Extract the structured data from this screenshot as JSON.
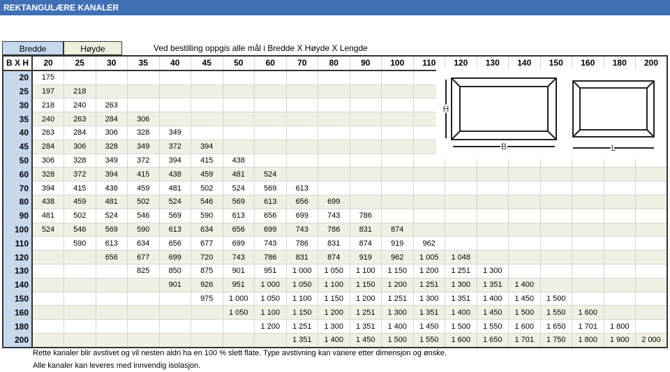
{
  "header": {
    "title": "REKTANGULÆRE KANALER"
  },
  "table": {
    "bredde_label": "Bredde",
    "hoyde_label": "Høyde",
    "note": "Ved bestilling oppgis alle mål i Bredde X Høyde X Lengde",
    "corner": "B X H",
    "columns": [
      "20",
      "25",
      "30",
      "35",
      "40",
      "45",
      "50",
      "60",
      "70",
      "80",
      "90",
      "100",
      "110",
      "120",
      "130",
      "140",
      "150",
      "160",
      "180",
      "200"
    ],
    "rows": [
      {
        "label": "20",
        "cells": [
          "175",
          null,
          null,
          null,
          null,
          null,
          null,
          null,
          null,
          null,
          null,
          null,
          null,
          null,
          null,
          null,
          null,
          null,
          null,
          null
        ]
      },
      {
        "label": "25",
        "cells": [
          "197",
          "218",
          null,
          null,
          null,
          null,
          null,
          null,
          null,
          null,
          null,
          null,
          null,
          null,
          null,
          null,
          null,
          null,
          null,
          null
        ]
      },
      {
        "label": "30",
        "cells": [
          "218",
          "240",
          "263",
          null,
          null,
          null,
          null,
          null,
          null,
          null,
          null,
          null,
          null,
          null,
          null,
          null,
          null,
          null,
          null,
          null
        ]
      },
      {
        "label": "35",
        "cells": [
          "240",
          "263",
          "284",
          "306",
          null,
          null,
          null,
          null,
          null,
          null,
          null,
          null,
          null,
          null,
          null,
          null,
          null,
          null,
          null,
          null
        ]
      },
      {
        "label": "40",
        "cells": [
          "263",
          "284",
          "306",
          "328",
          "349",
          null,
          null,
          null,
          null,
          null,
          null,
          null,
          null,
          null,
          null,
          null,
          null,
          null,
          null,
          null
        ]
      },
      {
        "label": "45",
        "cells": [
          "284",
          "306",
          "328",
          "349",
          "372",
          "394",
          null,
          null,
          null,
          null,
          null,
          null,
          null,
          null,
          null,
          null,
          null,
          null,
          null,
          null
        ]
      },
      {
        "label": "50",
        "cells": [
          "306",
          "328",
          "349",
          "372",
          "394",
          "415",
          "438",
          null,
          null,
          null,
          null,
          null,
          null,
          null,
          null,
          null,
          null,
          null,
          null,
          null
        ]
      },
      {
        "label": "60",
        "cells": [
          "328",
          "372",
          "394",
          "415",
          "438",
          "459",
          "481",
          "524",
          null,
          null,
          null,
          null,
          null,
          null,
          null,
          null,
          null,
          null,
          null,
          null
        ]
      },
      {
        "label": "70",
        "cells": [
          "394",
          "415",
          "438",
          "459",
          "481",
          "502",
          "524",
          "569",
          "613",
          null,
          null,
          null,
          null,
          null,
          null,
          null,
          null,
          null,
          null,
          null
        ]
      },
      {
        "label": "80",
        "cells": [
          "438",
          "459",
          "481",
          "502",
          "524",
          "546",
          "569",
          "613",
          "656",
          "699",
          null,
          null,
          null,
          null,
          null,
          null,
          null,
          null,
          null,
          null
        ]
      },
      {
        "label": "90",
        "cells": [
          "481",
          "502",
          "524",
          "546",
          "569",
          "590",
          "613",
          "656",
          "699",
          "743",
          "786",
          null,
          null,
          null,
          null,
          null,
          null,
          null,
          null,
          null
        ]
      },
      {
        "label": "100",
        "cells": [
          "524",
          "546",
          "569",
          "590",
          "613",
          "634",
          "656",
          "699",
          "743",
          "786",
          "831",
          "874",
          null,
          null,
          null,
          null,
          null,
          null,
          null,
          null
        ]
      },
      {
        "label": "110",
        "cells": [
          null,
          "590",
          "613",
          "634",
          "656",
          "677",
          "699",
          "743",
          "786",
          "831",
          "874",
          "919",
          "962",
          null,
          null,
          null,
          null,
          null,
          null,
          null
        ]
      },
      {
        "label": "120",
        "cells": [
          null,
          null,
          "656",
          "677",
          "699",
          "720",
          "743",
          "786",
          "831",
          "874",
          "919",
          "962",
          "1 005",
          "1 048",
          null,
          null,
          null,
          null,
          null,
          null
        ]
      },
      {
        "label": "130",
        "cells": [
          null,
          null,
          null,
          "825",
          "850",
          "875",
          "901",
          "951",
          "1 000",
          "1 050",
          "1 100",
          "1 150",
          "1 200",
          "1 251",
          "1 300",
          null,
          null,
          null,
          null,
          null
        ]
      },
      {
        "label": "140",
        "cells": [
          null,
          null,
          null,
          null,
          "901",
          "926",
          "951",
          "1 000",
          "1 050",
          "1 100",
          "1 150",
          "1 200",
          "1 251",
          "1 300",
          "1 351",
          "1 400",
          null,
          null,
          null,
          null
        ]
      },
      {
        "label": "150",
        "cells": [
          null,
          null,
          null,
          null,
          null,
          "975",
          "1 000",
          "1 050",
          "1 100",
          "1 150",
          "1 200",
          "1 251",
          "1 300",
          "1 351",
          "1 400",
          "1 450",
          "1 500",
          null,
          null,
          null
        ]
      },
      {
        "label": "160",
        "cells": [
          null,
          null,
          null,
          null,
          null,
          null,
          "1 050",
          "1 100",
          "1 150",
          "1 200",
          "1 251",
          "1 300",
          "1 351",
          "1 400",
          "1 450",
          "1 500",
          "1 550",
          "1 600",
          null,
          null
        ]
      },
      {
        "label": "180",
        "cells": [
          null,
          null,
          null,
          null,
          null,
          null,
          null,
          "1 200",
          "1 251",
          "1 300",
          "1 351",
          "1 400",
          "1 450",
          "1 500",
          "1 550",
          "1 600",
          "1 650",
          "1 701",
          "1 800",
          null
        ]
      },
      {
        "label": "200",
        "cells": [
          null,
          null,
          null,
          null,
          null,
          null,
          null,
          null,
          "1 351",
          "1 400",
          "1 450",
          "1 500",
          "1 550",
          "1 600",
          "1 650",
          "1 701",
          "1 750",
          "1 800",
          "1 900",
          "2 000"
        ]
      }
    ]
  },
  "diagram": {
    "h": "H",
    "b": "B",
    "l": "L"
  },
  "footer": {
    "line1": "Rette kanaler blir avstivet og vil nesten aldri ha en 100 % slett flate. Type avstivning kan variere etter dimensjon og ønske.",
    "line2": "Alle kanaler kan leveres med innvendig isolasjon."
  }
}
